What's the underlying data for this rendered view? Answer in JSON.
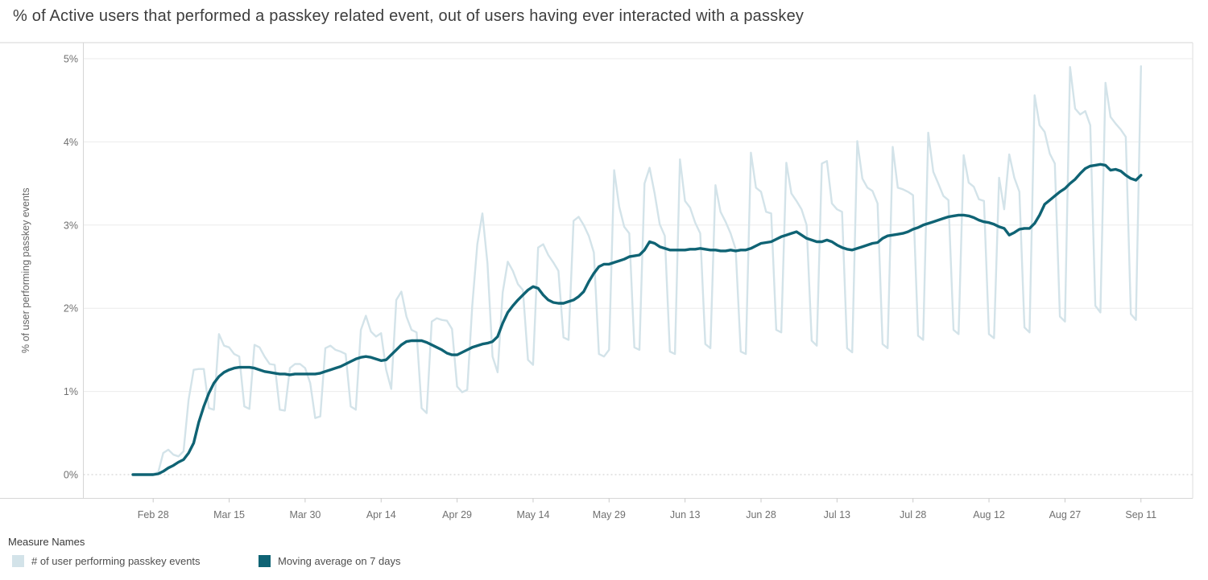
{
  "title": "% of Active users that performed a passkey related event, out of users having ever interacted with a passkey",
  "y_axis": {
    "title": "% of user performing passkey events"
  },
  "legend": {
    "title": "Measure Names",
    "items": [
      {
        "label": "# of user performing passkey events",
        "color": "#d3e3e9"
      },
      {
        "label": "Moving average on 7 days",
        "color": "#0f6374"
      }
    ]
  },
  "chart_data": {
    "type": "line",
    "title": "% of Active users that performed a passkey related event, out of users having ever interacted with a passkey",
    "xlabel": "",
    "ylabel": "% of user performing passkey events",
    "y_unit": "%",
    "ylim": [
      0,
      5
    ],
    "grid": "horizontal",
    "legend_position": "bottom-left",
    "start_date": "Feb 24",
    "end_date": "Sep 11",
    "points_per_day": 1,
    "x_tick_labels": [
      "Feb 28",
      "Mar 15",
      "Mar 30",
      "Apr 14",
      "Apr 29",
      "May 14",
      "May 29",
      "Jun 13",
      "Jun 28",
      "Jul 13",
      "Jul 28",
      "Aug 12",
      "Aug 27",
      "Sep 11"
    ],
    "y_tick_labels": [
      "0%",
      "1%",
      "2%",
      "3%",
      "4%",
      "5%"
    ],
    "series": [
      {
        "name": "# of user performing passkey events",
        "color": "#d3e3e9",
        "values": [
          0,
          0,
          0,
          0,
          0.01,
          0.03,
          0.26,
          0.3,
          0.24,
          0.22,
          0.28,
          0.9,
          1.26,
          1.27,
          1.27,
          0.8,
          0.78,
          1.69,
          1.55,
          1.53,
          1.45,
          1.42,
          0.82,
          0.79,
          1.56,
          1.53,
          1.42,
          1.33,
          1.32,
          0.78,
          0.77,
          1.28,
          1.33,
          1.33,
          1.28,
          1.1,
          0.68,
          0.7,
          1.52,
          1.55,
          1.5,
          1.48,
          1.45,
          0.82,
          0.78,
          1.74,
          1.91,
          1.72,
          1.66,
          1.7,
          1.26,
          1.03,
          2.1,
          2.2,
          1.9,
          1.74,
          1.71,
          0.8,
          0.74,
          1.84,
          1.88,
          1.86,
          1.85,
          1.75,
          1.06,
          0.99,
          1.02,
          2.03,
          2.77,
          3.14,
          2.54,
          1.42,
          1.23,
          2.19,
          2.56,
          2.45,
          2.29,
          2.22,
          1.38,
          1.32,
          2.73,
          2.77,
          2.64,
          2.55,
          2.45,
          1.65,
          1.62,
          3.05,
          3.1,
          3.0,
          2.87,
          2.67,
          1.45,
          1.42,
          1.5,
          3.66,
          3.22,
          2.98,
          2.9,
          1.53,
          1.5,
          3.5,
          3.69,
          3.38,
          3.01,
          2.87,
          1.48,
          1.45,
          3.79,
          3.29,
          3.21,
          3.03,
          2.9,
          1.57,
          1.52,
          3.48,
          3.16,
          3.04,
          2.9,
          2.71,
          1.48,
          1.45,
          3.87,
          3.45,
          3.4,
          3.16,
          3.14,
          1.74,
          1.71,
          3.75,
          3.38,
          3.29,
          3.19,
          3.0,
          1.61,
          1.55,
          3.74,
          3.77,
          3.26,
          3.19,
          3.16,
          1.52,
          1.47,
          4.01,
          3.56,
          3.45,
          3.41,
          3.26,
          1.57,
          1.52,
          3.94,
          3.45,
          3.43,
          3.4,
          3.36,
          1.67,
          1.62,
          4.11,
          3.64,
          3.5,
          3.35,
          3.3,
          1.74,
          1.69,
          3.84,
          3.51,
          3.46,
          3.31,
          3.29,
          1.69,
          1.64,
          3.57,
          3.19,
          3.85,
          3.57,
          3.4,
          1.77,
          1.71,
          4.56,
          4.2,
          4.12,
          3.86,
          3.74,
          1.9,
          1.84,
          4.9,
          4.4,
          4.33,
          4.37,
          4.2,
          2.03,
          1.95,
          4.71,
          4.3,
          4.22,
          4.15,
          4.06,
          1.93,
          1.86,
          4.91
        ]
      },
      {
        "name": "Moving average on 7 days",
        "color": "#0f6374",
        "values": [
          0,
          0,
          0,
          0,
          0,
          0.01,
          0.04,
          0.08,
          0.11,
          0.15,
          0.18,
          0.26,
          0.38,
          0.63,
          0.82,
          0.98,
          1.1,
          1.18,
          1.23,
          1.26,
          1.28,
          1.29,
          1.29,
          1.29,
          1.28,
          1.26,
          1.24,
          1.23,
          1.22,
          1.21,
          1.21,
          1.2,
          1.21,
          1.21,
          1.21,
          1.21,
          1.21,
          1.22,
          1.24,
          1.26,
          1.28,
          1.3,
          1.33,
          1.36,
          1.39,
          1.41,
          1.42,
          1.41,
          1.39,
          1.37,
          1.38,
          1.44,
          1.5,
          1.56,
          1.6,
          1.61,
          1.61,
          1.61,
          1.59,
          1.56,
          1.53,
          1.5,
          1.46,
          1.44,
          1.44,
          1.47,
          1.5,
          1.53,
          1.55,
          1.57,
          1.58,
          1.6,
          1.66,
          1.82,
          1.95,
          2.03,
          2.1,
          2.16,
          2.22,
          2.26,
          2.24,
          2.16,
          2.1,
          2.07,
          2.06,
          2.06,
          2.08,
          2.1,
          2.14,
          2.2,
          2.32,
          2.42,
          2.5,
          2.53,
          2.53,
          2.55,
          2.57,
          2.59,
          2.62,
          2.63,
          2.64,
          2.7,
          2.8,
          2.78,
          2.74,
          2.72,
          2.7,
          2.7,
          2.7,
          2.7,
          2.71,
          2.71,
          2.72,
          2.71,
          2.7,
          2.7,
          2.69,
          2.69,
          2.7,
          2.69,
          2.7,
          2.7,
          2.72,
          2.75,
          2.78,
          2.79,
          2.8,
          2.83,
          2.86,
          2.88,
          2.9,
          2.92,
          2.88,
          2.84,
          2.82,
          2.8,
          2.8,
          2.82,
          2.8,
          2.76,
          2.73,
          2.71,
          2.7,
          2.72,
          2.74,
          2.76,
          2.78,
          2.79,
          2.84,
          2.87,
          2.88,
          2.89,
          2.9,
          2.92,
          2.95,
          2.97,
          3.0,
          3.02,
          3.04,
          3.06,
          3.08,
          3.1,
          3.11,
          3.12,
          3.12,
          3.11,
          3.09,
          3.06,
          3.04,
          3.03,
          3.01,
          2.98,
          2.96,
          2.88,
          2.91,
          2.95,
          2.96,
          2.96,
          3.02,
          3.12,
          3.25,
          3.3,
          3.35,
          3.4,
          3.44,
          3.5,
          3.55,
          3.62,
          3.68,
          3.71,
          3.72,
          3.73,
          3.72,
          3.66,
          3.67,
          3.65,
          3.6,
          3.56,
          3.54,
          3.6
        ]
      }
    ]
  }
}
